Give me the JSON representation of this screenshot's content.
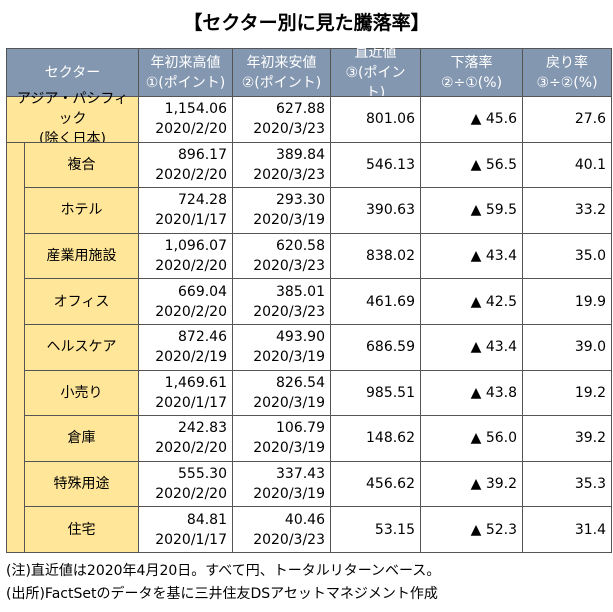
{
  "title": "【セクター別に見た騰落率】",
  "table": {
    "header": [
      [
        "セクター"
      ],
      [
        "年初来高値",
        "①(ポイント)"
      ],
      [
        "年初来安値",
        "②(ポイント)"
      ],
      [
        "直近値",
        "③(ポイント)"
      ],
      [
        "下落率",
        "②÷①(%)"
      ],
      [
        "戻り率",
        "③÷②(%)"
      ]
    ],
    "rows": [
      [
        [
          "アジア・パシフィック",
          "(除く日本)"
        ],
        [
          "1,154.06",
          "2020/2/20"
        ],
        [
          "627.88",
          "2020/3/23"
        ],
        [
          "801.06"
        ],
        [
          "▲ 45.6"
        ],
        [
          "27.6"
        ]
      ],
      [
        [
          "複合"
        ],
        [
          "896.17",
          "2020/2/20"
        ],
        [
          "389.84",
          "2020/3/23"
        ],
        [
          "546.13"
        ],
        [
          "▲ 56.5"
        ],
        [
          "40.1"
        ]
      ],
      [
        [
          "ホテル"
        ],
        [
          "724.28",
          "2020/1/17"
        ],
        [
          "293.30",
          "2020/3/19"
        ],
        [
          "390.63"
        ],
        [
          "▲ 59.5"
        ],
        [
          "33.2"
        ]
      ],
      [
        [
          "産業用施設"
        ],
        [
          "1,096.07",
          "2020/2/20"
        ],
        [
          "620.58",
          "2020/3/23"
        ],
        [
          "838.02"
        ],
        [
          "▲ 43.4"
        ],
        [
          "35.0"
        ]
      ],
      [
        [
          "オフィス"
        ],
        [
          "669.04",
          "2020/2/20"
        ],
        [
          "385.01",
          "2020/3/23"
        ],
        [
          "461.69"
        ],
        [
          "▲ 42.5"
        ],
        [
          "19.9"
        ]
      ],
      [
        [
          "ヘルスケア"
        ],
        [
          "872.46",
          "2020/2/19"
        ],
        [
          "493.90",
          "2020/3/19"
        ],
        [
          "686.59"
        ],
        [
          "▲ 43.4"
        ],
        [
          "39.0"
        ]
      ],
      [
        [
          "小売り"
        ],
        [
          "1,469.61",
          "2020/1/17"
        ],
        [
          "826.54",
          "2020/3/19"
        ],
        [
          "985.51"
        ],
        [
          "▲ 43.8"
        ],
        [
          "19.2"
        ]
      ],
      [
        [
          "倉庫"
        ],
        [
          "242.83",
          "2020/2/20"
        ],
        [
          "106.79",
          "2020/3/19"
        ],
        [
          "148.62"
        ],
        [
          "▲ 56.0"
        ],
        [
          "39.2"
        ]
      ],
      [
        [
          "特殊用途"
        ],
        [
          "555.30",
          "2020/2/20"
        ],
        [
          "337.43",
          "2020/3/19"
        ],
        [
          "456.62"
        ],
        [
          "▲ 39.2"
        ],
        [
          "35.3"
        ]
      ],
      [
        [
          "住宅"
        ],
        [
          "84.81",
          "2020/1/17"
        ],
        [
          "40.46",
          "2020/3/23"
        ],
        [
          "53.15"
        ],
        [
          "▲ 52.3"
        ],
        [
          "31.4"
        ]
      ]
    ]
  },
  "notes": [
    "(注)直近値は2020年4月20日。すべて円、トータルリターンベース。",
    "(出所)FactSetのデータを基に三井住友DSアセットマネジメント作成"
  ]
}
